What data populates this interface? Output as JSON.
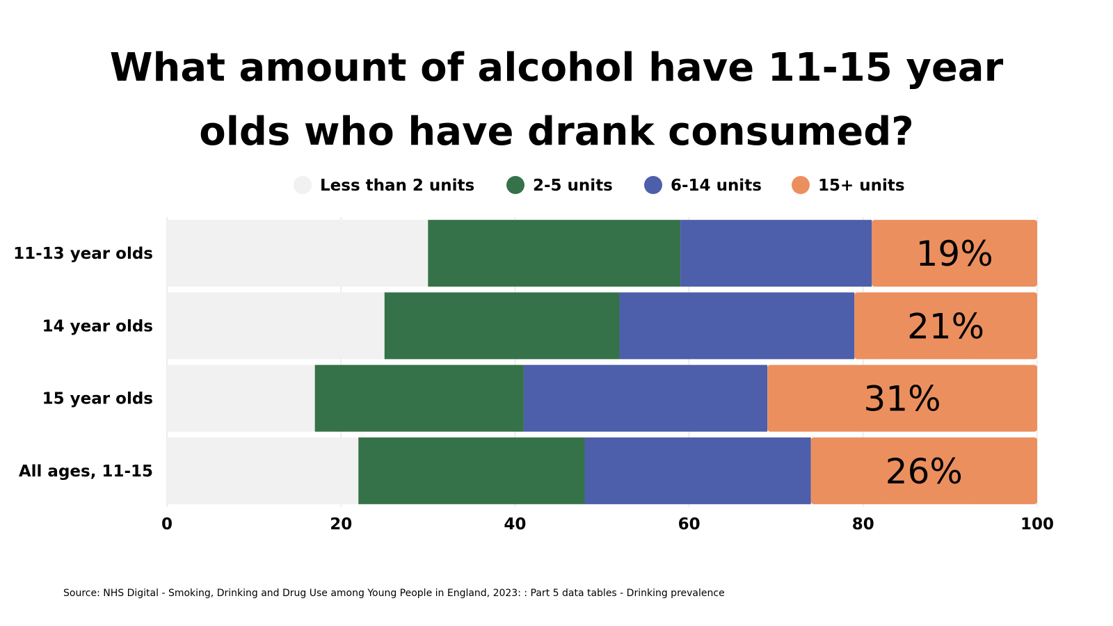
{
  "chart_data": {
    "type": "bar",
    "orientation": "horizontal",
    "stacked": true,
    "title_lines": [
      "What amount of alcohol have 11-15 year",
      "olds who have drank consumed?"
    ],
    "categories": [
      "11-13 year olds",
      "14 year olds",
      "15 year olds",
      "All ages, 11-15"
    ],
    "series": [
      {
        "name": "Less than 2 units",
        "color": "#f1f1f1",
        "values": [
          30,
          25,
          17,
          22
        ]
      },
      {
        "name": "2-5 units",
        "color": "#357249",
        "values": [
          29,
          27,
          24,
          26
        ]
      },
      {
        "name": "6-14 units",
        "color": "#4d5faa",
        "values": [
          22,
          27,
          28,
          26
        ]
      },
      {
        "name": "15+ units",
        "color": "#ec8f5e",
        "values": [
          19,
          21,
          31,
          26
        ]
      }
    ],
    "data_labels": [
      {
        "series": "15+ units",
        "labels": [
          "19%",
          "21%",
          "31%",
          "26%"
        ]
      }
    ],
    "x_ticks": [
      0,
      20,
      40,
      60,
      80,
      100
    ],
    "xlim": [
      0,
      100
    ],
    "xlabel": "",
    "ylabel": "",
    "grid": true,
    "legend_position": "top"
  },
  "source": "Source: NHS Digital - Smoking, Drinking and Drug Use among Young People in England, 2023: : Part 5 data tables - Drinking prevalence"
}
